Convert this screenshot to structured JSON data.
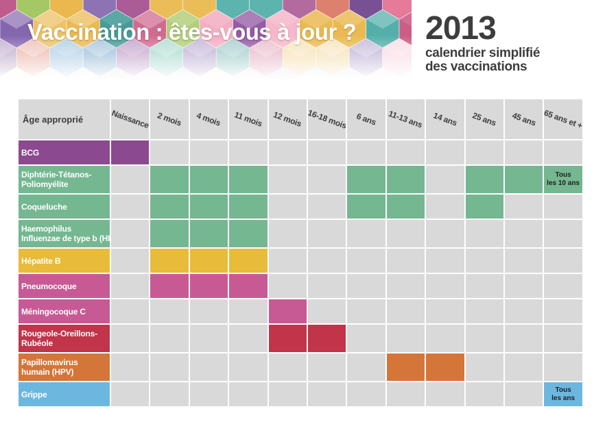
{
  "header": {
    "title": "Vaccination : êtes-vous à jour ?",
    "year": "2013",
    "subtitle_lines": [
      "calendrier simplifié",
      "des vaccinations"
    ]
  },
  "table": {
    "corner_label": "Âge approprié",
    "columns": [
      "Naissance",
      "2 mois",
      "4 mois",
      "11 mois",
      "12 mois",
      "16-18 mois",
      "6 ans",
      "11-13 ans",
      "14 ans",
      "25 ans",
      "45 ans",
      "65 ans et +"
    ],
    "rows": [
      {
        "label_lines": [
          "BCG"
        ],
        "color": "#8b4a8f",
        "cells": [
          0
        ]
      },
      {
        "label_lines": [
          "Diphtérie-Tétanos-",
          "Poliomyélite"
        ],
        "color": "#74b791",
        "cells": [
          1,
          2,
          3,
          6,
          7,
          9,
          10
        ],
        "note": {
          "col": 11,
          "lines": [
            "Tous",
            "les 10 ans"
          ]
        }
      },
      {
        "label_lines": [
          "Coqueluche"
        ],
        "color": "#74b791",
        "cells": [
          1,
          2,
          3,
          6,
          7,
          9
        ]
      },
      {
        "label_lines": [
          "Haemophilus",
          "Influenzae de type b (HIB)"
        ],
        "color": "#74b791",
        "cells": [
          1,
          2,
          3
        ]
      },
      {
        "label_lines": [
          "Hépatite B"
        ],
        "color": "#e8bb3a",
        "cells": [
          1,
          2,
          3
        ]
      },
      {
        "label_lines": [
          "Pneumocoque"
        ],
        "color": "#c75a95",
        "cells": [
          1,
          2,
          3
        ]
      },
      {
        "label_lines": [
          "Méningocoque C"
        ],
        "color": "#c75a95",
        "cells": [
          4
        ]
      },
      {
        "label_lines": [
          "Rougeole-Oreillons-",
          "Rubéole"
        ],
        "color": "#c1344a",
        "cells": [
          4,
          5
        ]
      },
      {
        "label_lines": [
          "Papillomavirus",
          "humain (HPV)"
        ],
        "color": "#d4763a",
        "cells": [
          7,
          8
        ]
      },
      {
        "label_lines": [
          "Grippe"
        ],
        "color": "#6cb7e0",
        "cells": [],
        "note": {
          "col": 11,
          "lines": [
            "Tous",
            "les ans"
          ]
        }
      }
    ]
  }
}
